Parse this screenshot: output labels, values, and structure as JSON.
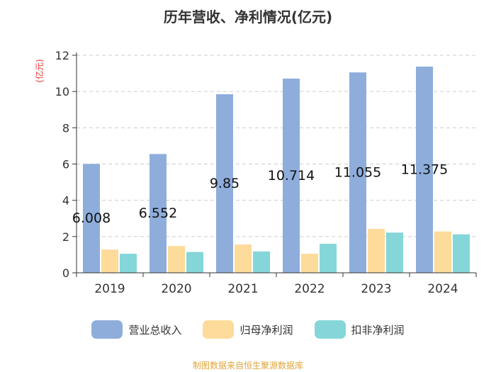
{
  "chart_data": {
    "type": "bar",
    "title": "历年营收、净利情况(亿元)",
    "ylabel": "(亿元)",
    "xlabel": "",
    "ylim": [
      0,
      12
    ],
    "yticks": [
      0,
      2,
      4,
      6,
      8,
      10,
      12
    ],
    "grid": true,
    "legend_position": "bottom",
    "categories": [
      "2019",
      "2020",
      "2021",
      "2022",
      "2023",
      "2024"
    ],
    "series": [
      {
        "name": "营业总收入",
        "color": "#8eaddb",
        "values": [
          6.008,
          6.552,
          9.85,
          10.714,
          11.055,
          11.375
        ],
        "labels": [
          "6.008",
          "6.552",
          "9.85",
          "10.714",
          "11.055",
          "11.375"
        ]
      },
      {
        "name": "归母净利润",
        "color": "#fddb9a",
        "values": [
          1.28,
          1.48,
          1.56,
          1.05,
          2.42,
          2.28
        ]
      },
      {
        "name": "扣非净利润",
        "color": "#84d6d8",
        "values": [
          1.05,
          1.15,
          1.18,
          1.6,
          2.22,
          2.12
        ]
      }
    ]
  },
  "source_note": "制图数据来自恒生聚源数据库"
}
